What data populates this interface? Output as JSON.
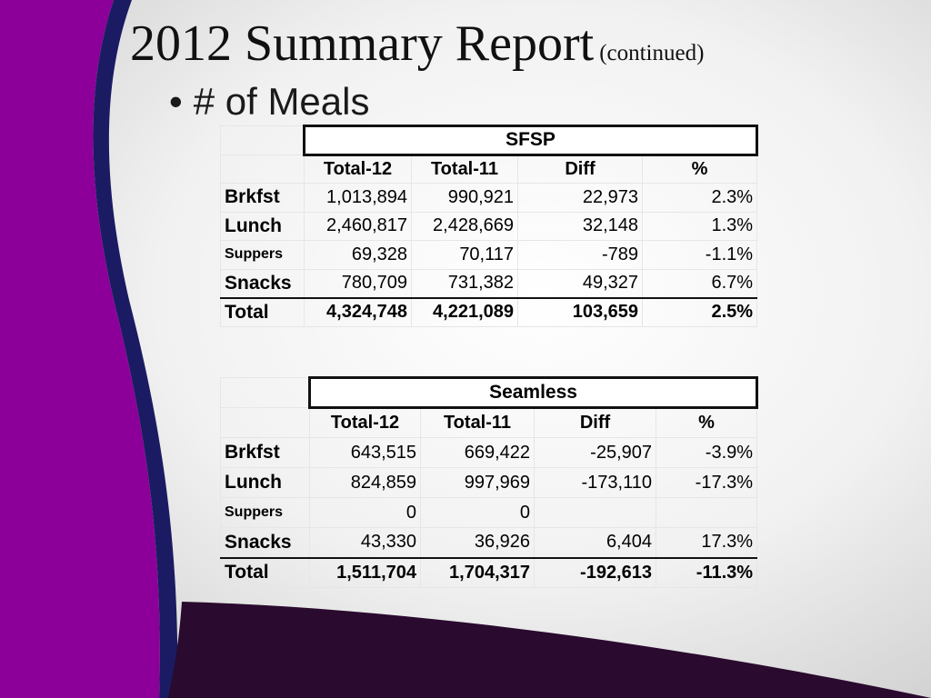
{
  "slide": {
    "title": "2012 Summary Report",
    "title_suffix": "(continued)",
    "bullet": "# of Meals",
    "colors": {
      "accent_purple": "#8c0099",
      "dark_purple": "#2a0a2e",
      "navy": "#1b1b63"
    }
  },
  "sfsp": {
    "group_label": "SFSP",
    "columns": [
      "Total-12",
      "Total-11",
      "Diff",
      "%"
    ],
    "rows": [
      {
        "label": "Brkfst",
        "cells": [
          "1,013,894",
          "990,921",
          "22,973",
          "2.3%"
        ]
      },
      {
        "label": "Lunch",
        "cells": [
          "2,460,817",
          "2,428,669",
          "32,148",
          "1.3%"
        ]
      },
      {
        "label": "Suppers",
        "cells": [
          "69,328",
          "70,117",
          "-789",
          "-1.1%"
        ]
      },
      {
        "label": "Snacks",
        "cells": [
          "780,709",
          "731,382",
          "49,327",
          "6.7%"
        ]
      }
    ],
    "total": {
      "label": "Total",
      "cells": [
        "4,324,748",
        "4,221,089",
        "103,659",
        "2.5%"
      ]
    }
  },
  "seamless": {
    "group_label": "Seamless",
    "columns": [
      "Total-12",
      "Total-11",
      "Diff",
      "%"
    ],
    "rows": [
      {
        "label": "Brkfst",
        "cells": [
          "643,515",
          "669,422",
          "-25,907",
          "-3.9%"
        ]
      },
      {
        "label": "Lunch",
        "cells": [
          "824,859",
          "997,969",
          "-173,110",
          "-17.3%"
        ]
      },
      {
        "label": "Suppers",
        "cells": [
          "0",
          "0",
          "",
          ""
        ]
      },
      {
        "label": "Snacks",
        "cells": [
          "43,330",
          "36,926",
          "6,404",
          "17.3%"
        ]
      }
    ],
    "total": {
      "label": "Total",
      "cells": [
        "1,511,704",
        "1,704,317",
        "-192,613",
        "-11.3%"
      ]
    }
  }
}
